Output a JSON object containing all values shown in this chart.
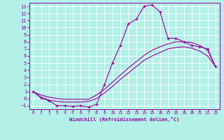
{
  "xlabel": "Windchill (Refroidissement éolien,°C)",
  "bg_color": "#b2f0e8",
  "line_color": "#990099",
  "grid_color": "#ffffff",
  "spine_color": "#990099",
  "xlim": [
    -0.5,
    23.5
  ],
  "ylim": [
    -1.5,
    13.5
  ],
  "xticks": [
    0,
    1,
    2,
    3,
    4,
    5,
    6,
    7,
    8,
    9,
    10,
    11,
    12,
    13,
    14,
    15,
    16,
    17,
    18,
    19,
    20,
    21,
    22,
    23
  ],
  "yticks": [
    -1,
    0,
    1,
    2,
    3,
    4,
    5,
    6,
    7,
    8,
    9,
    10,
    11,
    12,
    13
  ],
  "line1_x": [
    0,
    1,
    2,
    3,
    4,
    5,
    6,
    7,
    8,
    9,
    10,
    11,
    12,
    13,
    14,
    15,
    16,
    17,
    18,
    19,
    20,
    21,
    22,
    23
  ],
  "line1_y": [
    1.0,
    0.1,
    -0.3,
    -1.0,
    -1.0,
    -1.1,
    -1.0,
    -1.2,
    -0.8,
    2.0,
    5.0,
    7.5,
    10.5,
    11.2,
    13.0,
    13.2,
    12.2,
    8.5,
    8.5,
    8.0,
    7.5,
    7.3,
    7.0,
    4.5
  ],
  "line2_x": [
    0,
    1,
    2,
    3,
    4,
    5,
    6,
    7,
    8,
    9,
    10,
    11,
    12,
    13,
    14,
    15,
    16,
    17,
    18,
    19,
    20,
    21,
    22,
    23
  ],
  "line2_y": [
    1.0,
    0.5,
    0.2,
    0.0,
    -0.1,
    -0.1,
    -0.1,
    -0.1,
    0.5,
    1.3,
    2.3,
    3.3,
    4.3,
    5.2,
    6.1,
    6.8,
    7.3,
    7.7,
    8.0,
    8.0,
    7.9,
    7.5,
    6.8,
    4.5
  ],
  "line3_x": [
    0,
    1,
    2,
    3,
    4,
    5,
    6,
    7,
    8,
    9,
    10,
    11,
    12,
    13,
    14,
    15,
    16,
    17,
    18,
    19,
    20,
    21,
    22,
    23
  ],
  "line3_y": [
    1.0,
    0.2,
    -0.2,
    -0.4,
    -0.5,
    -0.5,
    -0.5,
    -0.4,
    0.0,
    0.8,
    1.7,
    2.7,
    3.6,
    4.5,
    5.4,
    6.0,
    6.5,
    7.0,
    7.2,
    7.3,
    7.1,
    6.7,
    6.0,
    4.5
  ]
}
